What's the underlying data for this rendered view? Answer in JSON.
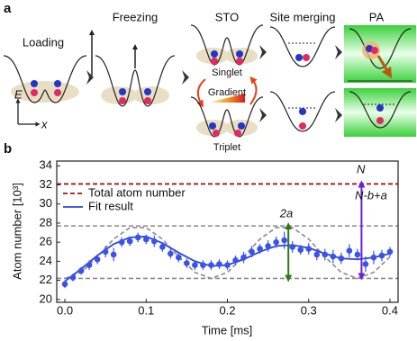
{
  "panel_a": {
    "panel_label": "a",
    "stages": [
      "Loading",
      "Freezing",
      "STO",
      "Site merging",
      "PA"
    ],
    "sto_states": [
      "Singlet",
      "Triplet"
    ],
    "gradient_label": "Gradient",
    "axis_labels": [
      "E",
      "x"
    ]
  },
  "chart_data": {
    "type": "line",
    "panel_label": "b",
    "x_label": "Time [ms]",
    "y_label": "Atom number [10³]",
    "xlim": [
      -0.01,
      0.41
    ],
    "ylim": [
      19.7,
      34.5
    ],
    "xticks": [
      {
        "value": 0,
        "label": "0.0"
      },
      0.1,
      0.2,
      0.3,
      0.4
    ],
    "yticks": [
      20,
      22,
      24,
      26,
      28,
      30,
      32,
      34
    ],
    "series": [
      {
        "name": "Total atom number",
        "color": "#a01818",
        "dashed": true,
        "x": [
          -0.01,
          0.41
        ],
        "values": [
          32.1,
          32.1
        ]
      },
      {
        "name": "Fit result",
        "color": "#2f45dc",
        "dashed": false,
        "x": [
          0,
          0.02,
          0.04,
          0.06,
          0.08,
          0.1,
          0.12,
          0.14,
          0.16,
          0.18,
          0.2,
          0.22,
          0.24,
          0.26,
          0.28,
          0.3,
          0.32,
          0.34,
          0.36,
          0.38,
          0.4
        ],
        "values": [
          21.9,
          23.2,
          24.6,
          25.8,
          26.5,
          26.6,
          25.9,
          24.9,
          24.0,
          23.5,
          23.6,
          24.2,
          25.0,
          25.6,
          25.7,
          25.4,
          24.8,
          24.3,
          24.2,
          24.4,
          24.8
        ]
      }
    ],
    "points": {
      "color": "#3a52ec",
      "x": [
        0,
        0.01,
        0.02,
        0.03,
        0.04,
        0.05,
        0.06,
        0.07,
        0.08,
        0.09,
        0.1,
        0.11,
        0.12,
        0.13,
        0.14,
        0.15,
        0.16,
        0.17,
        0.18,
        0.19,
        0.2,
        0.21,
        0.22,
        0.23,
        0.24,
        0.25,
        0.26,
        0.27,
        0.28,
        0.29,
        0.3,
        0.31,
        0.32,
        0.33,
        0.34,
        0.35,
        0.36,
        0.37,
        0.38,
        0.39,
        0.4
      ],
      "values": [
        21.6,
        22.3,
        23.0,
        23.6,
        24.2,
        25.0,
        24.7,
        26.0,
        26.1,
        26.5,
        26.3,
        26.1,
        25.5,
        24.8,
        24.4,
        23.8,
        23.6,
        23.6,
        23.6,
        23.7,
        23.6,
        24.1,
        24.4,
        25.0,
        25.3,
        25.6,
        26.0,
        26.2,
        25.5,
        25.2,
        25.3,
        24.7,
        24.7,
        24.5,
        24.3,
        25.1,
        24.7,
        23.7,
        24.4,
        24.6,
        25.0
      ],
      "errors": [
        0.4,
        0.4,
        0.4,
        0.5,
        0.5,
        0.6,
        0.7,
        0.5,
        0.5,
        0.5,
        0.5,
        0.6,
        0.5,
        0.5,
        0.5,
        0.5,
        0.5,
        0.5,
        0.5,
        0.5,
        0.5,
        0.5,
        0.6,
        0.6,
        0.5,
        0.6,
        0.6,
        0.9,
        0.6,
        0.5,
        0.6,
        0.6,
        0.6,
        0.7,
        0.6,
        0.7,
        0.6,
        0.8,
        0.7,
        0.6,
        0.5
      ]
    },
    "model_curve": {
      "color": "#8a8a8a",
      "x": [
        0,
        0.02,
        0.04,
        0.06,
        0.08,
        0.1,
        0.12,
        0.14,
        0.16,
        0.18,
        0.2,
        0.22,
        0.24,
        0.26,
        0.28,
        0.3,
        0.32,
        0.34,
        0.36,
        0.38,
        0.4
      ],
      "values": [
        22.2,
        22.84,
        24.47,
        26.33,
        27.53,
        27.53,
        26.33,
        24.47,
        22.84,
        22.2,
        22.84,
        24.47,
        26.33,
        27.53,
        27.53,
        26.33,
        24.47,
        22.84,
        22.2,
        22.84,
        24.47
      ]
    },
    "guide_lines": {
      "color": "#8a8a8a",
      "values": [
        22.2,
        27.7
      ]
    },
    "arrows": [
      {
        "label": "2a",
        "color": "#2a7a1a",
        "x": 0.275,
        "from": 22.2,
        "to": 27.7
      },
      {
        "label": "N-b+a",
        "color": "#6a22d8",
        "x": 0.365,
        "from": 32.1,
        "to": 22.4
      }
    ],
    "line_label": "N"
  }
}
